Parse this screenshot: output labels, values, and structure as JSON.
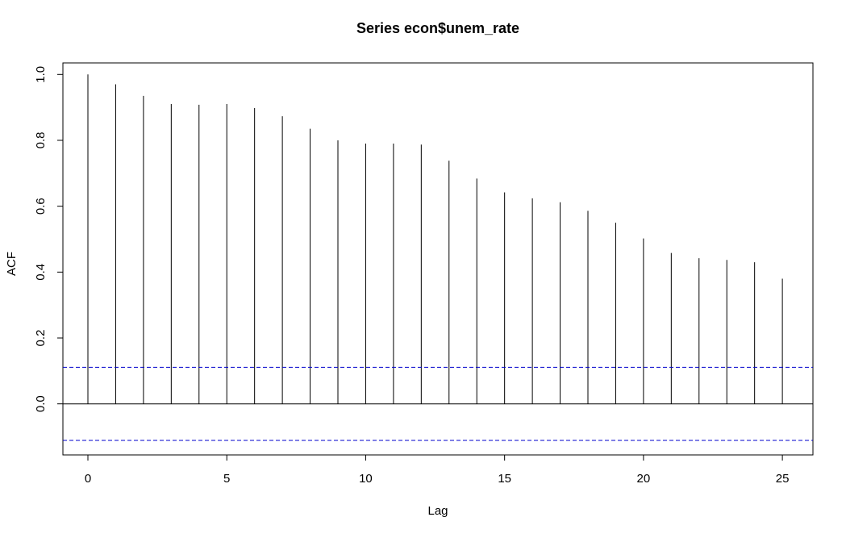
{
  "chart_data": {
    "type": "bar",
    "title": "Series  econ$unem_rate",
    "xlabel": "Lag",
    "ylabel": "ACF",
    "xlim": [
      -0.9,
      26.1
    ],
    "ylim": [
      -0.155,
      1.035
    ],
    "x_ticks": [
      "0",
      "5",
      "10",
      "15",
      "20",
      "25"
    ],
    "y_ticks": [
      "0.0",
      "0.2",
      "0.4",
      "0.6",
      "0.8",
      "1.0"
    ],
    "x": [
      0,
      1,
      2,
      3,
      4,
      5,
      6,
      7,
      8,
      9,
      10,
      11,
      12,
      13,
      14,
      15,
      16,
      17,
      18,
      19,
      20,
      21,
      22,
      23,
      24,
      25
    ],
    "values": [
      1.0,
      0.97,
      0.935,
      0.91,
      0.908,
      0.91,
      0.898,
      0.873,
      0.835,
      0.8,
      0.79,
      0.79,
      0.787,
      0.738,
      0.684,
      0.642,
      0.624,
      0.612,
      0.586,
      0.55,
      0.502,
      0.458,
      0.442,
      0.437,
      0.43,
      0.38
    ],
    "confidence_bound": 0.111,
    "colors": {
      "bars": "#000000",
      "confidence": "#0000cc",
      "zero_line": "#000000",
      "frame": "#000000"
    },
    "grid": false
  }
}
